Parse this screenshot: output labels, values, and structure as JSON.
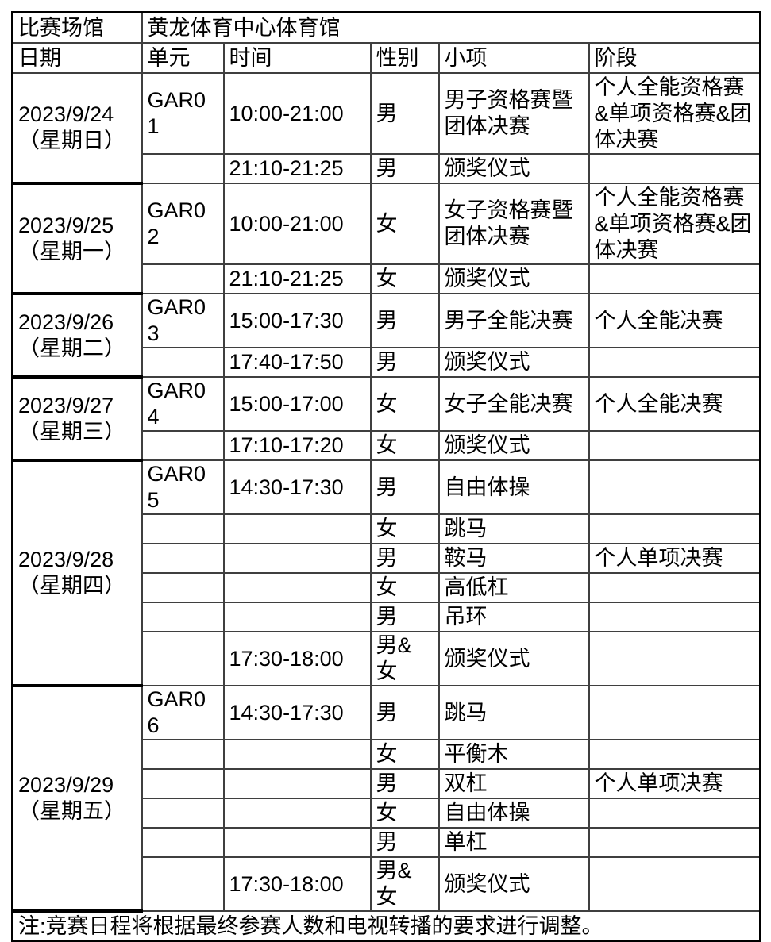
{
  "venue": {
    "label": "比赛场馆",
    "name": "黄龙体育中心体育馆"
  },
  "header": {
    "date": "日期",
    "unit": "单元",
    "time": "时间",
    "gender": "性别",
    "event": "小项",
    "stage": "阶段"
  },
  "groups": [
    {
      "date": "2023/9/24",
      "weekday": "（星期日）",
      "rows": [
        {
          "unit": "GAR01",
          "time": "10:00-21:00",
          "gender": "男",
          "event": "男子资格赛暨团体决赛",
          "stage": "个人全能资格赛&单项资格赛&团体决赛"
        },
        {
          "unit": "",
          "time": "21:10-21:25",
          "gender": "男",
          "event": "颁奖仪式",
          "stage": ""
        }
      ]
    },
    {
      "date": "2023/9/25",
      "weekday": "（星期一）",
      "rows": [
        {
          "unit": "GAR02",
          "time": "10:00-21:00",
          "gender": "女",
          "event": "女子资格赛暨团体决赛",
          "stage": "个人全能资格赛&单项资格赛&团体决赛"
        },
        {
          "unit": "",
          "time": "21:10-21:25",
          "gender": "女",
          "event": "颁奖仪式",
          "stage": ""
        }
      ]
    },
    {
      "date": "2023/9/26",
      "weekday": "（星期二）",
      "rows": [
        {
          "unit": "GAR03",
          "time": "15:00-17:30",
          "gender": "男",
          "event": "男子全能决赛",
          "stage": "个人全能决赛"
        },
        {
          "unit": "",
          "time": "17:40-17:50",
          "gender": "男",
          "event": "颁奖仪式",
          "stage": ""
        }
      ]
    },
    {
      "date": "2023/9/27",
      "weekday": "（星期三）",
      "rows": [
        {
          "unit": "GAR04",
          "time": "15:00-17:00",
          "gender": "女",
          "event": "女子全能决赛",
          "stage": "个人全能决赛"
        },
        {
          "unit": "",
          "time": "17:10-17:20",
          "gender": "女",
          "event": "颁奖仪式",
          "stage": ""
        }
      ]
    },
    {
      "date": "2023/9/28",
      "weekday": "（星期四）",
      "rows": [
        {
          "unit": "GAR05",
          "time": "14:30-17:30",
          "gender": "男",
          "event": "自由体操",
          "stage": ""
        },
        {
          "unit": "",
          "time": "",
          "gender": "女",
          "event": "跳马",
          "stage": ""
        },
        {
          "unit": "",
          "time": "",
          "gender": "男",
          "event": "鞍马",
          "stage": "个人单项决赛"
        },
        {
          "unit": "",
          "time": "",
          "gender": "女",
          "event": "高低杠",
          "stage": ""
        },
        {
          "unit": "",
          "time": "",
          "gender": "男",
          "event": "吊环",
          "stage": ""
        },
        {
          "unit": "",
          "time": "17:30-18:00",
          "gender": "男&女",
          "event": "颁奖仪式",
          "stage": ""
        }
      ]
    },
    {
      "date": "2023/9/29",
      "weekday": "（星期五）",
      "rows": [
        {
          "unit": "GAR06",
          "time": "14:30-17:30",
          "gender": "男",
          "event": "跳马",
          "stage": ""
        },
        {
          "unit": "",
          "time": "",
          "gender": "女",
          "event": "平衡木",
          "stage": ""
        },
        {
          "unit": "",
          "time": "",
          "gender": "男",
          "event": "双杠",
          "stage": "个人单项决赛"
        },
        {
          "unit": "",
          "time": "",
          "gender": "女",
          "event": "自由体操",
          "stage": ""
        },
        {
          "unit": "",
          "time": "",
          "gender": "男",
          "event": "单杠",
          "stage": ""
        },
        {
          "unit": "",
          "time": "17:30-18:00",
          "gender": "男&女",
          "event": "颁奖仪式",
          "stage": ""
        }
      ]
    }
  ],
  "note": "注:竞赛日程将根据最终参赛人数和电视转播的要求进行调整。"
}
